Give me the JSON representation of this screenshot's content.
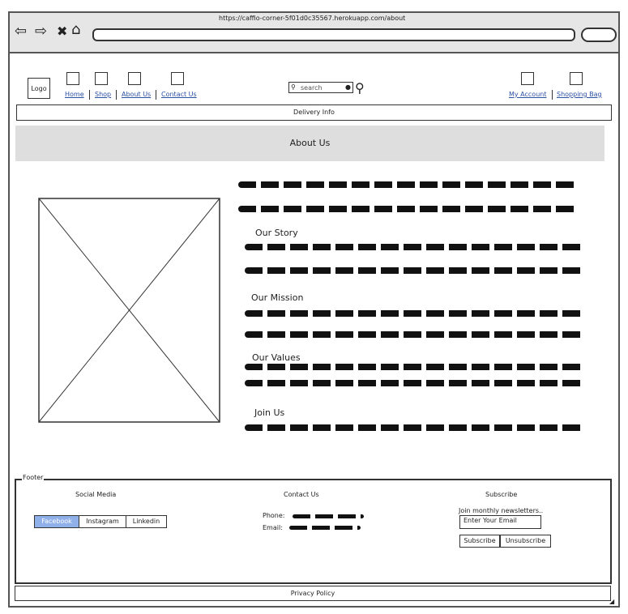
{
  "browser": {
    "url": "https://caffio-corner-5f01d0c35567.herokuapp.com/about"
  },
  "header": {
    "logo": "Logo",
    "nav": [
      "Home",
      "Shop",
      "About Us",
      "Contact Us"
    ],
    "search_placeholder": "search",
    "account": "My Account",
    "bag": "Shopping Bag",
    "delivery": "Delivery Info"
  },
  "page": {
    "title": "About Us",
    "sections": [
      "Our Story",
      "Our Mission",
      "Our Values",
      "Join Us"
    ]
  },
  "footer": {
    "label": "Footer",
    "social_title": "Social Media",
    "social": [
      "Facebook",
      "Instagram",
      "Linkedin"
    ],
    "contact_title": "Contact Us",
    "phone_label": "Phone:",
    "email_label": "Email:",
    "subscribe_title": "Subscribe",
    "newsletter_text": "Join monthly newsletters..",
    "email_placeholder": "Enter Your Email",
    "subscribe_btn": "Subscribe",
    "unsubscribe_btn": "Unsubscribe",
    "privacy": "Privacy Policy"
  },
  "colors": {
    "highlight": "#8fb0e8",
    "banner": "#dedede"
  }
}
